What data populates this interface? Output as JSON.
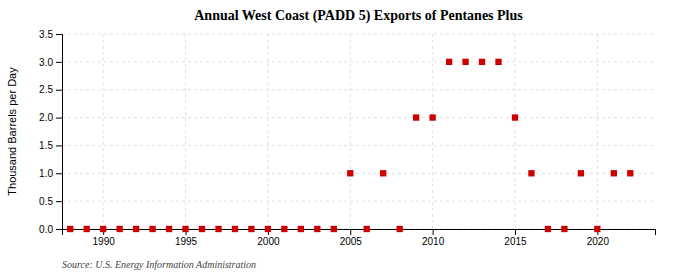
{
  "chart_data": {
    "type": "scatter",
    "title": "Annual West Coast (PADD 5) Exports of Pentanes Plus",
    "ylabel": "Thousand Barrels per Day",
    "annotation": "Source: U.S. Energy Information Administration",
    "x": [
      1988,
      1989,
      1990,
      1991,
      1992,
      1993,
      1994,
      1995,
      1996,
      1997,
      1998,
      1999,
      2000,
      2001,
      2002,
      2003,
      2004,
      2005,
      2006,
      2007,
      2008,
      2009,
      2010,
      2011,
      2012,
      2013,
      2014,
      2015,
      2016,
      2017,
      2018,
      2019,
      2020,
      2021,
      2022
    ],
    "values": [
      0,
      0,
      0,
      0,
      0,
      0,
      0,
      0,
      0,
      0,
      0,
      0,
      0,
      0,
      0,
      0,
      0,
      1,
      0,
      1,
      0,
      2,
      2,
      3,
      3,
      3,
      3,
      2,
      1,
      0,
      0,
      1,
      0,
      1,
      1
    ],
    "color": "#cc0000",
    "marker": "square",
    "xlim": [
      1987.5,
      2023.5
    ],
    "ylim": [
      0,
      3.5
    ],
    "xticks": [
      1990,
      1995,
      2000,
      2005,
      2010,
      2015,
      2020
    ],
    "yticks": [
      {
        "value": 0,
        "label": "0.0"
      },
      0.5,
      {
        "value": 1,
        "label": "1.0"
      },
      1.5,
      {
        "value": 2,
        "label": "2.0"
      },
      2.5,
      {
        "value": 3,
        "label": "3.0"
      },
      3.5
    ],
    "grid": true
  }
}
